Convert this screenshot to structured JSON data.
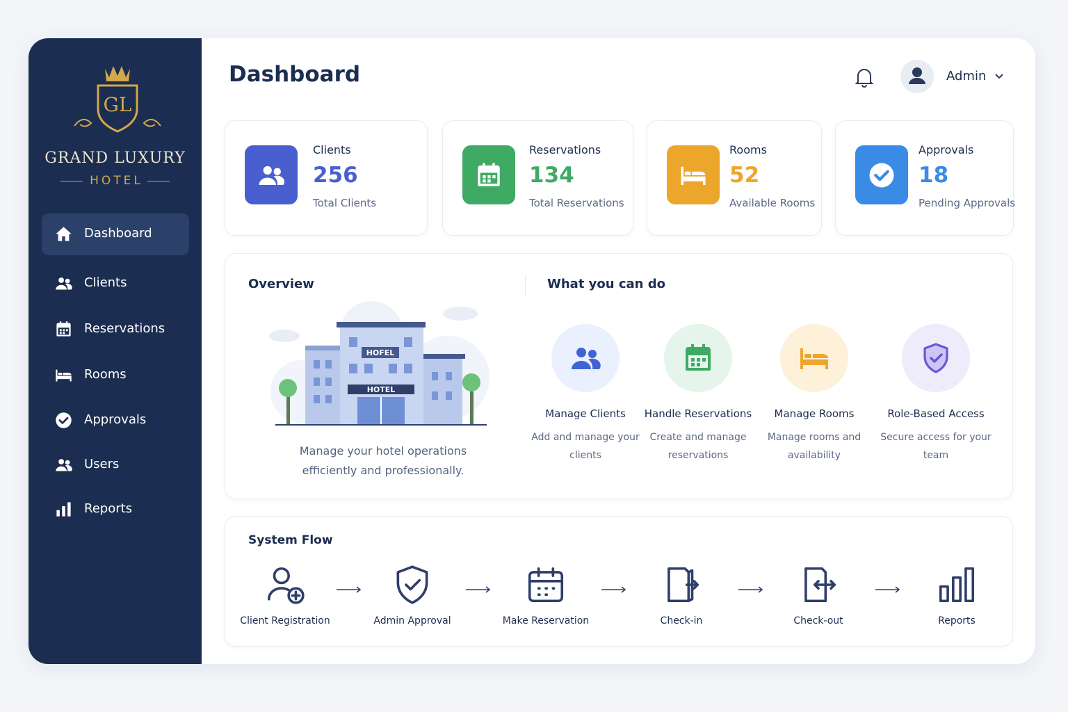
{
  "brand": {
    "monogram": "GL",
    "name": "GRAND LUXURY",
    "subtitle": "HOTEL"
  },
  "nav": {
    "active": 0,
    "items": [
      "Dashboard",
      "Clients",
      "Reservations",
      "Rooms",
      "Approvals",
      "Users",
      "Reports"
    ]
  },
  "header": {
    "title": "Dashboard",
    "user": "Admin"
  },
  "stats": [
    {
      "label": "Clients",
      "value": 256,
      "caption": "Total Clients",
      "color": "#4a5fcf"
    },
    {
      "label": "Reservations",
      "value": 134,
      "caption": "Total Reservations",
      "color": "#3faa63"
    },
    {
      "label": "Rooms",
      "value": 52,
      "caption": "Available Rooms",
      "color": "#eda62c"
    },
    {
      "label": "Approvals",
      "value": 18,
      "caption": "Pending Approvals",
      "color": "#3a8be6"
    }
  ],
  "overview": {
    "title": "Overview",
    "signs": [
      "HOFEL",
      "HOTEL"
    ],
    "description": "Manage your hotel operations efficiently and professionally."
  },
  "features": {
    "title": "What you can do",
    "items": [
      {
        "title": "Manage Clients",
        "description": "Add and manage your clients"
      },
      {
        "title": "Handle Reservations",
        "description": "Create and manage reservations"
      },
      {
        "title": "Manage Rooms",
        "description": "Manage rooms and availability"
      },
      {
        "title": "Role-Based Access",
        "description": "Secure access for your team"
      }
    ]
  },
  "flow": {
    "title": "System Flow",
    "steps": [
      "Client Registration",
      "Admin Approval",
      "Make Reservation",
      "Check-in",
      "Check-out",
      "Reports"
    ]
  }
}
